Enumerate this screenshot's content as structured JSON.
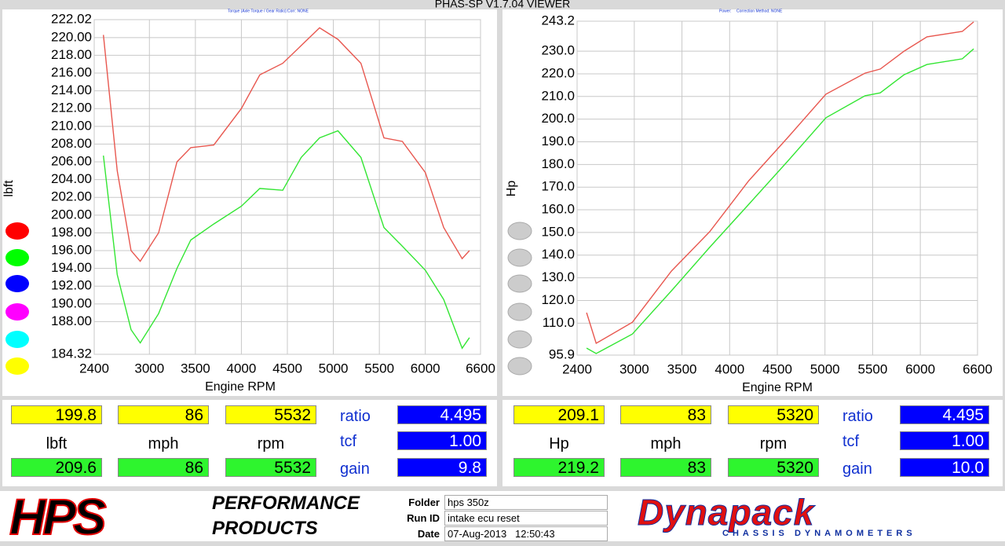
{
  "header": {
    "title": "PHAS-SP V1.7.04  VIEWER",
    "left_info": "Torque (Axle Torque / Gear Ratio):",
    "left_corr": "Corr: NONE",
    "right_info": "Power:",
    "right_corr": "Correction Method: NONE"
  },
  "chart_data": [
    {
      "type": "line",
      "x_label": "Engine RPM",
      "y_label": "lbft",
      "xlim": [
        2400,
        6600
      ],
      "xticks": [
        2400,
        3000,
        3500,
        4000,
        4500,
        5000,
        5500,
        6000,
        6600
      ],
      "ylim": [
        184.32,
        222.02
      ],
      "yticks": [
        184.32,
        {
          "value": 188,
          "label": "188.00"
        },
        {
          "value": 190,
          "label": "190.00"
        },
        {
          "value": 192,
          "label": "192.00"
        },
        {
          "value": 194,
          "label": "194.00"
        },
        {
          "value": 196,
          "label": "196.00"
        },
        {
          "value": 198,
          "label": "198.00"
        },
        {
          "value": 200,
          "label": "200.00"
        },
        {
          "value": 202,
          "label": "202.00"
        },
        {
          "value": 204,
          "label": "204.00"
        },
        {
          "value": 206,
          "label": "206.00"
        },
        {
          "value": 208,
          "label": "208.00"
        },
        {
          "value": 210,
          "label": "210.00"
        },
        {
          "value": 212,
          "label": "212.00"
        },
        {
          "value": 214,
          "label": "214.00"
        },
        {
          "value": 216,
          "label": "216.00"
        },
        {
          "value": 218,
          "label": "218.00"
        },
        {
          "value": 220,
          "label": "220.00"
        },
        222.02
      ],
      "grid": true,
      "x": [
        2500,
        2650,
        2800,
        2900,
        3100,
        3300,
        3450,
        3700,
        4000,
        4200,
        4450,
        4650,
        4850,
        5050,
        5300,
        5550,
        5750,
        6000,
        6200,
        6400,
        6480
      ],
      "series": [
        {
          "color": "#e8574f",
          "values": [
            220.3,
            205,
            196,
            194.8,
            198,
            206,
            207.6,
            207.9,
            212,
            215.8,
            217.1,
            219.1,
            221.1,
            219.8,
            217.1,
            208.7,
            208.3,
            204.8,
            198.6,
            195.1,
            196.0
          ]
        },
        {
          "color": "#33e633",
          "values": [
            206.7,
            193.3,
            187.1,
            185.6,
            188.9,
            194,
            197.2,
            199,
            201,
            203.0,
            202.8,
            206.5,
            208.7,
            209.5,
            206.5,
            198.6,
            196.5,
            193.8,
            190.5,
            185.0,
            186.2
          ]
        }
      ]
    },
    {
      "type": "line",
      "x_label": "Engine RPM",
      "y_label": "Hp",
      "xlim": [
        2400,
        6600
      ],
      "xticks": [
        2400,
        3000,
        3500,
        4000,
        4500,
        5000,
        5500,
        6000,
        6600
      ],
      "ylim": [
        95.9,
        243.2
      ],
      "yticks": [
        95.9,
        {
          "value": 110,
          "label": "110.0"
        },
        {
          "value": 120,
          "label": "120.0"
        },
        {
          "value": 130,
          "label": "130.0"
        },
        {
          "value": 140,
          "label": "140.0"
        },
        {
          "value": 150,
          "label": "150.0"
        },
        {
          "value": 160,
          "label": "160.0"
        },
        {
          "value": 170,
          "label": "170.0"
        },
        {
          "value": 180,
          "label": "180.0"
        },
        {
          "value": 190,
          "label": "190.0"
        },
        {
          "value": 200,
          "label": "200.0"
        },
        {
          "value": 210,
          "label": "210.0"
        },
        {
          "value": 220,
          "label": "220.0"
        },
        {
          "value": 230,
          "label": "230.0"
        },
        243.2
      ],
      "grid": true,
      "x": [
        2500,
        2600,
        2980,
        3390,
        3790,
        4200,
        4610,
        5010,
        5420,
        5580,
        5830,
        6070,
        6440,
        6560
      ],
      "series": [
        {
          "color": "#e8574f",
          "values": [
            114.6,
            101.1,
            110.4,
            133,
            150.3,
            172.8,
            191.9,
            211,
            220.3,
            222.1,
            230,
            236.3,
            238.7,
            242.9
          ]
        },
        {
          "color": "#33e633",
          "values": [
            99,
            96.6,
            105.2,
            124.3,
            143.4,
            162.4,
            181.5,
            200.6,
            210.3,
            211.6,
            219.6,
            224.1,
            226.6,
            231
          ]
        }
      ]
    }
  ],
  "readouts": [
    {
      "row1": [
        "199.8",
        "86",
        "5532"
      ],
      "units": [
        "lbft",
        "mph",
        "rpm"
      ],
      "row2": [
        "209.6",
        "86",
        "5532"
      ],
      "params": [
        {
          "label": "ratio",
          "value": "4.495"
        },
        {
          "label": "tcf",
          "value": "1.00"
        },
        {
          "label": "gain",
          "value": "9.8"
        }
      ]
    },
    {
      "row1": [
        "209.1",
        "83",
        "5320"
      ],
      "units": [
        "Hp",
        "mph",
        "rpm"
      ],
      "row2": [
        "219.2",
        "83",
        "5320"
      ],
      "params": [
        {
          "label": "ratio",
          "value": "4.495"
        },
        {
          "label": "tcf",
          "value": "1.00"
        },
        {
          "label": "gain",
          "value": "10.0"
        }
      ]
    }
  ],
  "footer": {
    "logo": "HPS",
    "logo_sub1": "PERFORMANCE",
    "logo_sub2": "PRODUCTS",
    "folder_label": "Folder",
    "folder": "hps 350z",
    "run_label": "Run ID",
    "run": "intake ecu reset",
    "date_label": "Date",
    "date": "07-Aug-2013   12:50:43",
    "brand": "Dynapack",
    "brand_sub": "CHASSIS DYNAMOMETERS"
  }
}
